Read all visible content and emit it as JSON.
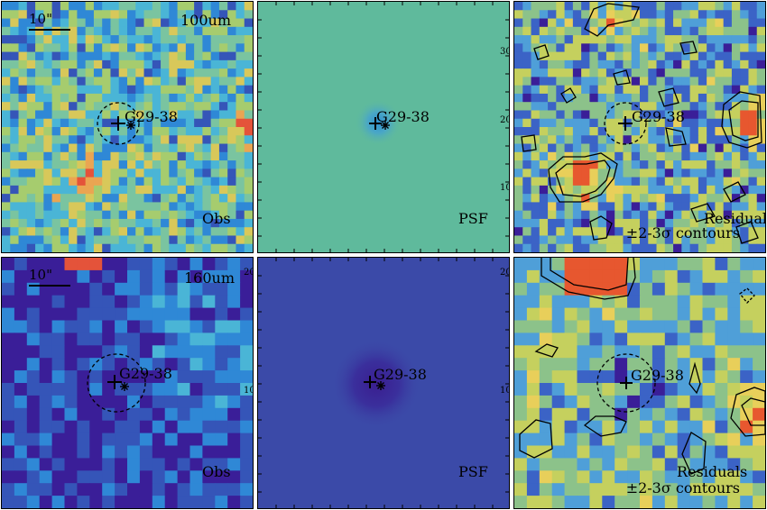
{
  "source_name": "G29-38",
  "scale_label": "10\"",
  "colors": {
    "obs_palette": [
      "#3a1e98",
      "#3555b8",
      "#2f88d6",
      "#4ab5d6",
      "#7ac4a0",
      "#a6cc6e",
      "#d8c85a",
      "#eaa552",
      "#e4533a"
    ],
    "psf100_background": "#5fba9c",
    "psf160_background": "#3b4aa8",
    "residual_palette": [
      "#3a1e98",
      "#3b63c6",
      "#4f9fd8",
      "#8cc28a",
      "#c5d05e",
      "#e8cf5a",
      "#e7572f"
    ]
  },
  "rows": [
    {
      "band": "100um",
      "panels": [
        {
          "kind": "observed",
          "label": "Obs",
          "band_label": "100um",
          "scale_bar": true
        },
        {
          "kind": "psf",
          "label": "PSF",
          "ticks": [
            "30",
            "20",
            "10"
          ]
        },
        {
          "kind": "residual",
          "label_line1": "Residuals",
          "label_line2": "±2-3σ contours"
        }
      ]
    },
    {
      "band": "160um",
      "panels": [
        {
          "kind": "observed",
          "label": "Obs",
          "band_label": "160um",
          "scale_bar": true,
          "ticks": [
            "20",
            "10"
          ]
        },
        {
          "kind": "psf",
          "label": "PSF",
          "ticks": [
            "20",
            "10"
          ]
        },
        {
          "kind": "residual",
          "label_line1": "Residuals",
          "label_line2": "±2-3σ contours"
        }
      ]
    }
  ]
}
